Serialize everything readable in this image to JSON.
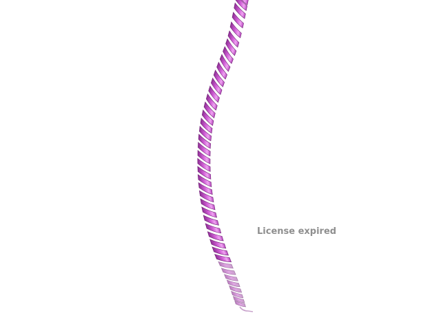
{
  "viewer": {
    "watermark_text": "License expired",
    "background_color": "#ffffff",
    "structure": {
      "representation": "cartoon",
      "secondary_structure": "alpha-helix",
      "helix_color": "#d15fd6",
      "highlight_color": "#f0a3f2",
      "shadow_color": "#8e2e94"
    }
  }
}
